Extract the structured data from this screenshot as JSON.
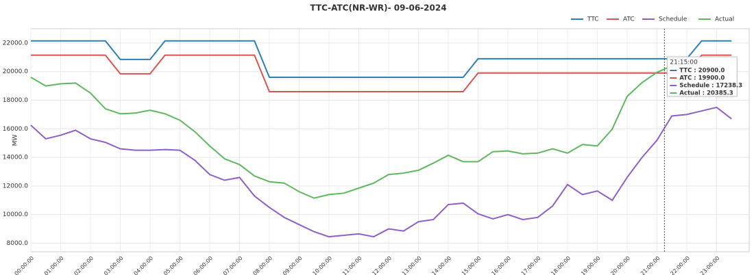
{
  "chart_data": {
    "type": "line",
    "title": "TTC-ATC(NR-WR)- 09-06-2024",
    "y_label": "MW",
    "categories": [
      "00:00:00",
      null,
      "01:00:00",
      null,
      "02:00:00",
      null,
      "03:00:00",
      null,
      "04:00:00",
      null,
      "05:00:00",
      null,
      "06:00:00",
      null,
      "07:00:00",
      null,
      "08:00:00",
      null,
      "09:00:00",
      null,
      "10:00:00",
      null,
      "11:00:00",
      null,
      "12:00:00",
      null,
      "13:00:00",
      null,
      "14:00:00",
      null,
      "15:00:00",
      null,
      "16:00:00",
      null,
      "17:00:00",
      null,
      "18:00:00",
      null,
      "19:00:00",
      null,
      "20:00:00",
      null,
      "21:00:00",
      null,
      "22:00:00",
      null,
      "23:00:00",
      null
    ],
    "series": [
      {
        "name": "TTC",
        "color": "#2c7fb2",
        "values": [
          22150,
          22150,
          22150,
          22150,
          22150,
          22150,
          20850,
          20850,
          20850,
          22150,
          22150,
          22150,
          22150,
          22150,
          22150,
          22150,
          19600,
          19600,
          19600,
          19600,
          19600,
          19600,
          19600,
          19600,
          19600,
          19600,
          19600,
          19600,
          19600,
          19600,
          20900,
          20900,
          20900,
          20900,
          20900,
          20900,
          20900,
          20900,
          20900,
          20900,
          20900,
          20900,
          20900,
          20900,
          20900,
          22150,
          22150,
          22150
        ]
      },
      {
        "name": "ATC",
        "color": "#d9534f",
        "values": [
          21150,
          21150,
          21150,
          21150,
          21150,
          21150,
          19850,
          19850,
          19850,
          21150,
          21150,
          21150,
          21150,
          21150,
          21150,
          21150,
          18600,
          18600,
          18600,
          18600,
          18600,
          18600,
          18600,
          18600,
          18600,
          18600,
          18600,
          18600,
          18600,
          18600,
          19900,
          19900,
          19900,
          19900,
          19900,
          19900,
          19900,
          19900,
          19900,
          19900,
          19900,
          19900,
          19900,
          19900,
          19900,
          21150,
          21150,
          21150
        ]
      },
      {
        "name": "Schedule",
        "color": "#8e5ec9",
        "values": [
          16250,
          15300,
          15550,
          15900,
          15300,
          15050,
          14600,
          14500,
          14500,
          14550,
          14500,
          13800,
          12800,
          12400,
          12600,
          11300,
          10500,
          9800,
          9300,
          8800,
          8450,
          8550,
          8650,
          8450,
          9000,
          8850,
          9500,
          9650,
          10700,
          10800,
          10050,
          9700,
          10000,
          9650,
          9800,
          10600,
          12100,
          11400,
          11650,
          11000,
          12600,
          14000,
          15200,
          16900,
          17000,
          17250,
          17500,
          16700
        ]
      },
      {
        "name": "Actual",
        "color": "#5cb85c",
        "values": [
          19600,
          19000,
          19150,
          19200,
          18500,
          17400,
          17050,
          17100,
          17300,
          17050,
          16600,
          15800,
          14800,
          13900,
          13500,
          12700,
          12300,
          12200,
          11600,
          11150,
          11400,
          11500,
          11850,
          12200,
          12800,
          12900,
          13100,
          13600,
          14150,
          13700,
          13700,
          14400,
          14450,
          14250,
          14300,
          14600,
          14300,
          14900,
          14800,
          15980,
          18270,
          19230,
          19950,
          20400,
          null,
          null,
          null,
          null
        ]
      }
    ],
    "ylim": [
      7400,
      23000
    ],
    "yticks": [
      {
        "value": 8000,
        "label": "8000.0"
      },
      {
        "value": 10000,
        "label": "10000.0"
      },
      {
        "value": 12000,
        "label": "12000.0"
      },
      {
        "value": 14000,
        "label": "14000.0"
      },
      {
        "value": 16000,
        "label": "16000.0"
      },
      {
        "value": 18000,
        "label": "18000.0"
      },
      {
        "value": 20000,
        "label": "20000.0"
      },
      {
        "value": 22000,
        "label": "22000.0"
      }
    ],
    "grid": true,
    "legend": "top-right",
    "tooltip": {
      "title": "21:15:00",
      "lines": [
        "TTC : 20900.0",
        "ATC : 19900.0",
        "Schedule : 17238.3",
        "Actual : 20385.3"
      ]
    }
  }
}
